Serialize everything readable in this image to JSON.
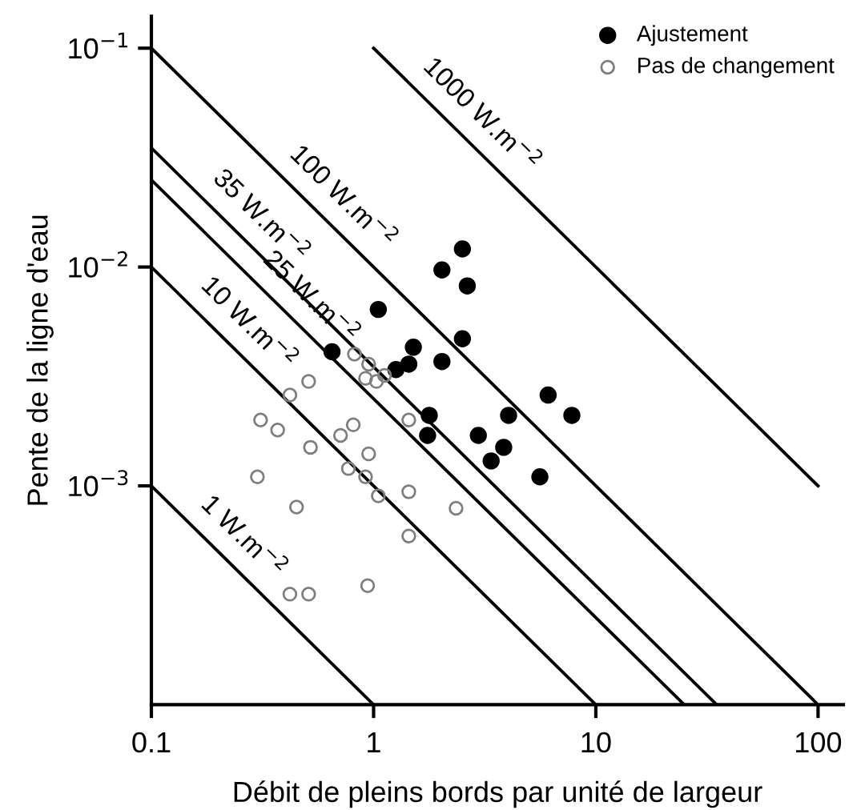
{
  "chart_data": {
    "type": "scatter",
    "xlabel": "Débit de pleins bords par unité de largeur",
    "ylabel": "Pente de la ligne d'eau",
    "log": "xy",
    "xlim": [
      0.1,
      130
    ],
    "ylim": [
      0.0001,
      0.14
    ],
    "xticks": [
      0.1,
      1,
      10,
      100
    ],
    "yticks": [
      {
        "value": 0.1,
        "label": "10$^{−1}$"
      },
      {
        "value": 0.01,
        "label": "10$^{−2}$"
      },
      {
        "value": 0.001,
        "label": "10$^{−3}$"
      }
    ],
    "grid": false,
    "legend": "top right",
    "series": [
      {
        "name": "Ajustement",
        "marker": "circle",
        "color": "#000000",
        "x": [
          2.03,
          2.51,
          2.64,
          1.05,
          0.65,
          1.51,
          1.44,
          1.26,
          2.03,
          2.51,
          6.1,
          7.8,
          1.78,
          1.75,
          2.96,
          4.05,
          3.85,
          3.38,
          5.6
        ],
        "values": [
          0.0097,
          0.0121,
          0.0082,
          0.0064,
          0.0041,
          0.0043,
          0.0036,
          0.0034,
          0.0037,
          0.0047,
          0.0026,
          0.0021,
          0.0021,
          0.0017,
          0.0017,
          0.0021,
          0.0015,
          0.0013,
          0.0011
        ]
      },
      {
        "name": "Pas de changement",
        "marker": "circle",
        "color": "#7f7f7f",
        "x": [
          0.82,
          0.95,
          0.92,
          1.03,
          1.12,
          0.51,
          0.42,
          0.31,
          0.37,
          0.52,
          0.71,
          0.81,
          0.95,
          0.77,
          0.92,
          1.05,
          1.44,
          1.44,
          1.44,
          0.3,
          0.45,
          0.42,
          0.51,
          0.94,
          2.35
        ],
        "values": [
          0.004,
          0.0036,
          0.0031,
          0.003,
          0.0032,
          0.003,
          0.0026,
          0.002,
          0.0018,
          0.0015,
          0.0017,
          0.0019,
          0.0014,
          0.0012,
          0.0011,
          0.0009,
          0.002,
          0.00094,
          0.00059,
          0.0011,
          0.0008,
          0.00032,
          0.00032,
          0.00035,
          0.00079
        ]
      },
      {
        "type": "line",
        "name": "1 W.m$^{−2}$",
        "color": "#000000",
        "x": [
          0.1,
          1
        ],
        "values": [
          0.001,
          0.0001
        ]
      },
      {
        "type": "line",
        "name": "10 W.m$^{−2}$",
        "color": "#000000",
        "x": [
          0.1,
          10
        ],
        "values": [
          0.01,
          0.0001
        ]
      },
      {
        "type": "line",
        "name": "25 W.m$^{−2}$",
        "color": "#000000",
        "x": [
          0.1,
          25
        ],
        "values": [
          0.025,
          0.0001
        ]
      },
      {
        "type": "line",
        "name": "35 W.m$^{−2}$",
        "color": "#000000",
        "x": [
          0.1,
          35
        ],
        "values": [
          0.035,
          0.0001
        ]
      },
      {
        "type": "line",
        "name": "100 W.m$^{−2}$",
        "color": "#000000",
        "x": [
          0.1,
          100
        ],
        "values": [
          0.1,
          0.0001
        ]
      },
      {
        "type": "line",
        "name": "1000 W.m$^{−2}$",
        "color": "#000000",
        "x": [
          1,
          100
        ],
        "values": [
          0.1,
          0.001
        ]
      }
    ]
  }
}
